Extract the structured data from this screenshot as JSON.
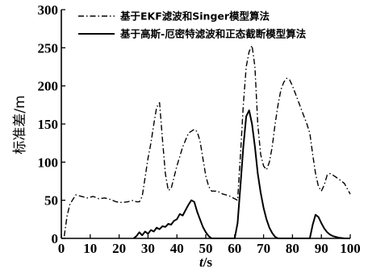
{
  "chart_data": {
    "type": "line",
    "title": "",
    "xlabel": {
      "var": "t",
      "unit": "/s"
    },
    "ylabel": "标准差/m",
    "xlim": [
      0,
      100
    ],
    "ylim": [
      0,
      300
    ],
    "x_ticks": [
      0,
      10,
      20,
      30,
      40,
      50,
      60,
      70,
      80,
      90,
      100
    ],
    "y_ticks": [
      0,
      50,
      100,
      150,
      200,
      250,
      300
    ],
    "legend_position": "top-right",
    "grid": false,
    "series": [
      {
        "name": "基于EKF滤波和Singer模型算法",
        "style": "dash-dot",
        "color": "#000000",
        "points": [
          [
            1,
            3
          ],
          [
            2,
            30
          ],
          [
            3,
            45
          ],
          [
            5,
            57
          ],
          [
            7,
            55
          ],
          [
            9,
            53
          ],
          [
            11,
            55
          ],
          [
            13,
            52
          ],
          [
            15,
            53
          ],
          [
            17,
            51
          ],
          [
            19,
            48
          ],
          [
            21,
            47
          ],
          [
            23,
            48
          ],
          [
            25,
            50
          ],
          [
            26,
            48
          ],
          [
            27,
            48
          ],
          [
            28,
            55
          ],
          [
            29,
            80
          ],
          [
            30,
            105
          ],
          [
            31,
            125
          ],
          [
            32,
            150
          ],
          [
            33,
            172
          ],
          [
            34,
            178
          ],
          [
            35,
            130
          ],
          [
            36,
            85
          ],
          [
            37,
            63
          ],
          [
            38,
            65
          ],
          [
            40,
            95
          ],
          [
            42,
            120
          ],
          [
            44,
            138
          ],
          [
            46,
            143
          ],
          [
            47,
            140
          ],
          [
            48,
            128
          ],
          [
            49,
            105
          ],
          [
            50,
            82
          ],
          [
            51,
            68
          ],
          [
            52,
            62
          ],
          [
            54,
            62
          ],
          [
            56,
            58
          ],
          [
            58,
            56
          ],
          [
            60,
            52
          ],
          [
            61,
            50
          ],
          [
            62,
            110
          ],
          [
            63,
            175
          ],
          [
            64,
            225
          ],
          [
            65,
            245
          ],
          [
            66,
            253
          ],
          [
            67,
            225
          ],
          [
            68,
            150
          ],
          [
            69,
            110
          ],
          [
            70,
            95
          ],
          [
            71,
            90
          ],
          [
            72,
            100
          ],
          [
            73,
            120
          ],
          [
            74,
            150
          ],
          [
            75,
            175
          ],
          [
            76,
            195
          ],
          [
            77,
            205
          ],
          [
            78,
            210
          ],
          [
            79,
            208
          ],
          [
            80,
            200
          ],
          [
            81,
            190
          ],
          [
            82,
            180
          ],
          [
            83,
            170
          ],
          [
            84,
            160
          ],
          [
            85,
            150
          ],
          [
            86,
            138
          ],
          [
            87,
            110
          ],
          [
            88,
            85
          ],
          [
            89,
            68
          ],
          [
            90,
            62
          ],
          [
            91,
            70
          ],
          [
            92,
            83
          ],
          [
            93,
            85
          ],
          [
            94,
            83
          ],
          [
            96,
            78
          ],
          [
            98,
            72
          ],
          [
            100,
            58
          ]
        ]
      },
      {
        "name": "基于高斯-厄密特滤波和正态截断模型算法",
        "style": "solid",
        "color": "#000000",
        "points": [
          [
            25,
            0
          ],
          [
            26,
            3
          ],
          [
            27,
            8
          ],
          [
            28,
            4
          ],
          [
            29,
            9
          ],
          [
            30,
            6
          ],
          [
            31,
            11
          ],
          [
            32,
            9
          ],
          [
            33,
            14
          ],
          [
            34,
            12
          ],
          [
            35,
            16
          ],
          [
            36,
            15
          ],
          [
            37,
            19
          ],
          [
            38,
            18
          ],
          [
            39,
            23
          ],
          [
            40,
            25
          ],
          [
            41,
            32
          ],
          [
            42,
            30
          ],
          [
            43,
            37
          ],
          [
            44,
            44
          ],
          [
            45,
            50
          ],
          [
            46,
            48
          ],
          [
            47,
            35
          ],
          [
            48,
            25
          ],
          [
            49,
            15
          ],
          [
            50,
            8
          ],
          [
            51,
            3
          ],
          [
            52,
            0
          ],
          [
            60,
            0
          ],
          [
            61,
            20
          ],
          [
            62,
            70
          ],
          [
            63,
            120
          ],
          [
            64,
            160
          ],
          [
            65,
            168
          ],
          [
            66,
            150
          ],
          [
            67,
            120
          ],
          [
            68,
            85
          ],
          [
            69,
            60
          ],
          [
            70,
            40
          ],
          [
            71,
            25
          ],
          [
            72,
            14
          ],
          [
            73,
            7
          ],
          [
            74,
            2
          ],
          [
            75,
            0
          ],
          [
            86,
            0
          ],
          [
            87,
            18
          ],
          [
            88,
            31
          ],
          [
            89,
            28
          ],
          [
            90,
            20
          ],
          [
            91,
            13
          ],
          [
            92,
            8
          ],
          [
            93,
            5
          ],
          [
            94,
            3
          ],
          [
            96,
            1
          ],
          [
            98,
            0
          ],
          [
            100,
            0
          ]
        ]
      }
    ]
  }
}
